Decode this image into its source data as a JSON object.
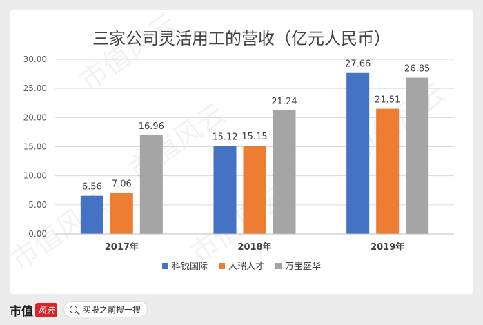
{
  "chart_data": {
    "type": "bar",
    "title": "三家公司灵活用工的营收（亿元人民币）",
    "categories": [
      "2017年",
      "2018年",
      "2019年"
    ],
    "series": [
      {
        "name": "科锐国际",
        "color": "#4472c4",
        "values": [
          6.56,
          15.12,
          27.66
        ],
        "labels": [
          "6.56",
          "15.12",
          "27.66"
        ]
      },
      {
        "name": "人瑞人才",
        "color": "#ed7d31",
        "values": [
          7.06,
          15.15,
          21.51
        ],
        "labels": [
          "7.06",
          "15.15",
          "21.51"
        ]
      },
      {
        "name": "万宝盛华",
        "color": "#a5a5a5",
        "values": [
          16.96,
          21.24,
          26.85
        ],
        "labels": [
          "16.96",
          "21.24",
          "26.85"
        ]
      }
    ],
    "ylim": [
      0,
      30
    ],
    "yticks": [
      "0.00",
      "5.00",
      "10.00",
      "15.00",
      "20.00",
      "25.00",
      "30.00"
    ],
    "ytick_values": [
      0,
      5,
      10,
      15,
      20,
      25,
      30
    ],
    "grid": true,
    "legend_position": "bottom"
  },
  "watermark": "市值风云",
  "footer": {
    "brand": "市值",
    "brand_seal": "风云",
    "search_placeholder": "买股之前搜一搜",
    "search_icon": "search-icon"
  }
}
